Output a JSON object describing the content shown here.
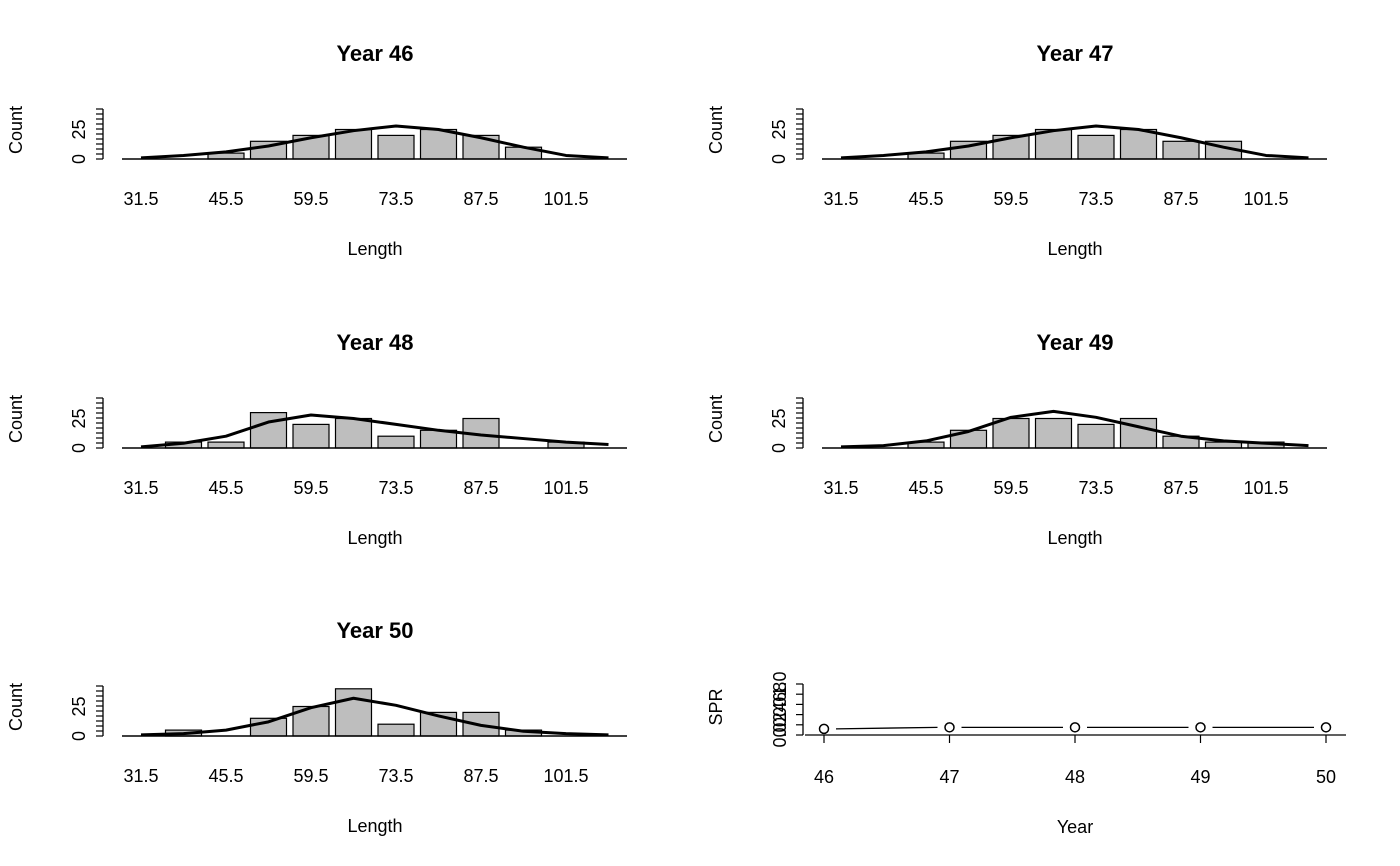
{
  "chart_data": [
    {
      "type": "bar",
      "title": "Year 46",
      "xlabel": "Length",
      "ylabel": "Count",
      "categories": [
        31.5,
        38.5,
        45.5,
        52.5,
        59.5,
        66.5,
        73.5,
        80.5,
        87.5,
        94.5,
        101.5,
        108.5
      ],
      "x_tick_labels": [
        "31.5",
        "45.5",
        "59.5",
        "73.5",
        "87.5",
        "101.5"
      ],
      "y_ticks": [
        "0",
        "25"
      ],
      "values": [
        0,
        0,
        5,
        15,
        20,
        25,
        20,
        25,
        20,
        10,
        0,
        0
      ],
      "fitted_curve": [
        1,
        3,
        6,
        11,
        18,
        24,
        28,
        25,
        18,
        10,
        3,
        1
      ]
    },
    {
      "type": "bar",
      "title": "Year 47",
      "xlabel": "Length",
      "ylabel": "Count",
      "categories": [
        31.5,
        38.5,
        45.5,
        52.5,
        59.5,
        66.5,
        73.5,
        80.5,
        87.5,
        94.5,
        101.5,
        108.5
      ],
      "x_tick_labels": [
        "31.5",
        "45.5",
        "59.5",
        "73.5",
        "87.5",
        "101.5"
      ],
      "y_ticks": [
        "0",
        "25"
      ],
      "values": [
        0,
        0,
        5,
        15,
        20,
        25,
        20,
        25,
        15,
        15,
        0,
        0
      ],
      "fitted_curve": [
        1,
        3,
        6,
        11,
        18,
        24,
        28,
        25,
        18,
        10,
        3,
        1
      ]
    },
    {
      "type": "bar",
      "title": "Year 48",
      "xlabel": "Length",
      "ylabel": "Count",
      "categories": [
        31.5,
        38.5,
        45.5,
        52.5,
        59.5,
        66.5,
        73.5,
        80.5,
        87.5,
        94.5,
        101.5,
        108.5
      ],
      "x_tick_labels": [
        "31.5",
        "45.5",
        "59.5",
        "73.5",
        "87.5",
        "101.5"
      ],
      "y_ticks": [
        "0",
        "25"
      ],
      "values": [
        0,
        5,
        5,
        30,
        20,
        25,
        10,
        15,
        25,
        0,
        5,
        0
      ],
      "fitted_curve": [
        1,
        4,
        10,
        22,
        28,
        25,
        20,
        15,
        11,
        8,
        5,
        3
      ]
    },
    {
      "type": "bar",
      "title": "Year 49",
      "xlabel": "Length",
      "ylabel": "Count",
      "categories": [
        31.5,
        38.5,
        45.5,
        52.5,
        59.5,
        66.5,
        73.5,
        80.5,
        87.5,
        94.5,
        101.5,
        108.5
      ],
      "x_tick_labels": [
        "31.5",
        "45.5",
        "59.5",
        "73.5",
        "87.5",
        "101.5"
      ],
      "y_ticks": [
        "0",
        "25"
      ],
      "values": [
        0,
        0,
        5,
        15,
        25,
        25,
        20,
        25,
        10,
        5,
        5,
        0
      ],
      "fitted_curve": [
        1,
        2,
        6,
        14,
        26,
        31,
        26,
        18,
        10,
        6,
        4,
        2
      ]
    },
    {
      "type": "bar",
      "title": "Year 50",
      "xlabel": "Length",
      "ylabel": "Count",
      "categories": [
        31.5,
        38.5,
        45.5,
        52.5,
        59.5,
        66.5,
        73.5,
        80.5,
        87.5,
        94.5,
        101.5,
        108.5
      ],
      "x_tick_labels": [
        "31.5",
        "45.5",
        "59.5",
        "73.5",
        "87.5",
        "101.5"
      ],
      "y_ticks": [
        "0",
        "25"
      ],
      "values": [
        0,
        5,
        0,
        15,
        25,
        40,
        10,
        20,
        20,
        5,
        0,
        0
      ],
      "fitted_curve": [
        1,
        2,
        5,
        12,
        24,
        32,
        26,
        17,
        9,
        4,
        2,
        1
      ]
    },
    {
      "type": "line",
      "title": "",
      "xlabel": "Year",
      "ylabel": "SPR",
      "x": [
        46,
        47,
        48,
        49,
        50
      ],
      "x_tick_labels": [
        "46",
        "47",
        "48",
        "49",
        "50"
      ],
      "y": [
        0.12,
        0.15,
        0.15,
        0.15,
        0.15
      ],
      "y_ticks": [
        "0.0",
        "0.2",
        "0.4",
        "0.6",
        "0.8",
        "1.0"
      ],
      "ylim": [
        0,
        1
      ],
      "markers": "open-circle"
    }
  ]
}
